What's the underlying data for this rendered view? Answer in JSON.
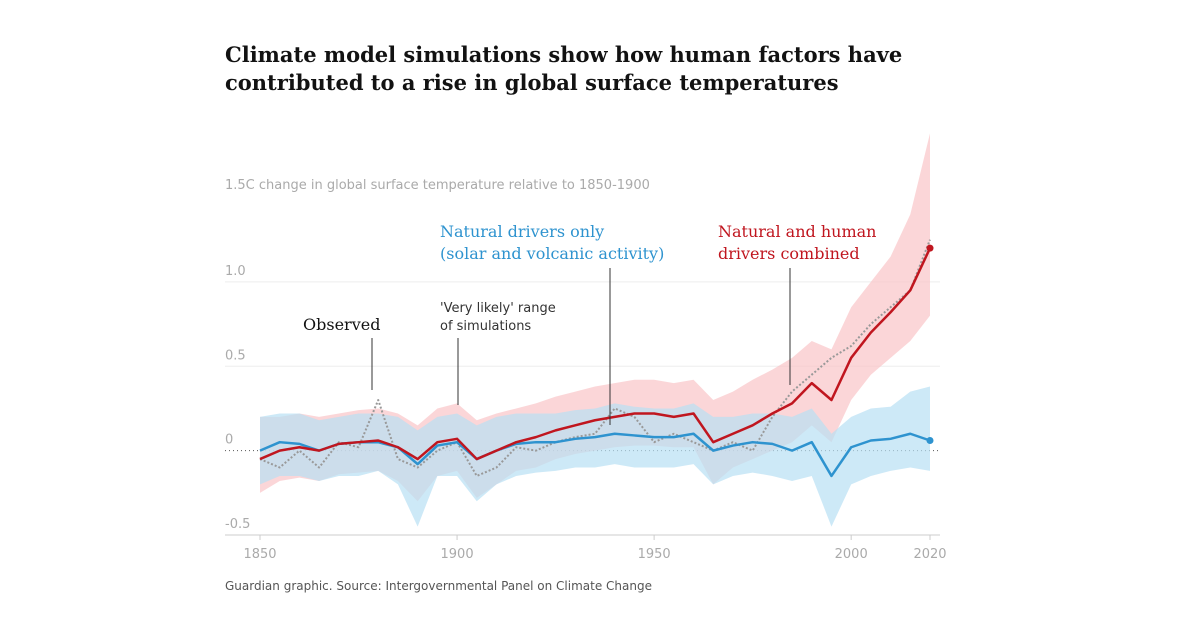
{
  "chart_data": {
    "type": "line",
    "title_lines": [
      "Climate model simulations show how human factors have",
      "contributed to a rise in global surface temperatures"
    ],
    "y_axis_label": "1.5C change in global surface temperature relative to 1850-1900",
    "source": "Guardian graphic. Source: Intergovernmental Panel on Climate Change",
    "range_label_lines": [
      "'Very likely' range",
      "of simulations"
    ],
    "xlim": [
      1850,
      2020
    ],
    "xticks": [
      1850,
      1900,
      1950,
      2000,
      2020
    ],
    "ylim": [
      -0.5,
      1.9
    ],
    "yticks": [
      -0.5,
      0,
      0.5,
      {
        "value": 1,
        "label": "1.0"
      }
    ],
    "grid": true,
    "x": [
      1850,
      1855,
      1860,
      1865,
      1870,
      1875,
      1880,
      1885,
      1890,
      1895,
      1900,
      1905,
      1910,
      1915,
      1920,
      1925,
      1930,
      1935,
      1940,
      1945,
      1950,
      1955,
      1960,
      1965,
      1970,
      1975,
      1980,
      1985,
      1990,
      1995,
      2000,
      2005,
      2010,
      2015,
      2020
    ],
    "series": [
      {
        "name_lines": [
          "Natural and human",
          "drivers combined"
        ],
        "color": "#c0161f",
        "range_color": "#f9c4c8",
        "values": [
          -0.05,
          0.0,
          0.02,
          0.0,
          0.04,
          0.05,
          0.06,
          0.02,
          -0.05,
          0.05,
          0.07,
          -0.05,
          0.0,
          0.05,
          0.08,
          0.12,
          0.15,
          0.18,
          0.2,
          0.22,
          0.22,
          0.2,
          0.22,
          0.05,
          0.1,
          0.15,
          0.22,
          0.28,
          0.4,
          0.3,
          0.55,
          0.7,
          0.82,
          0.95,
          1.2
        ],
        "range_low": [
          -0.25,
          -0.18,
          -0.16,
          -0.18,
          -0.14,
          -0.13,
          -0.12,
          -0.18,
          -0.3,
          -0.15,
          -0.12,
          -0.28,
          -0.2,
          -0.12,
          -0.1,
          -0.05,
          -0.02,
          0.0,
          0.02,
          0.03,
          0.03,
          0.02,
          0.02,
          -0.2,
          -0.1,
          -0.05,
          0.0,
          0.05,
          0.15,
          0.05,
          0.3,
          0.45,
          0.55,
          0.65,
          0.8
        ],
        "range_high": [
          0.2,
          0.2,
          0.22,
          0.2,
          0.22,
          0.24,
          0.25,
          0.22,
          0.15,
          0.25,
          0.28,
          0.18,
          0.22,
          0.25,
          0.28,
          0.32,
          0.35,
          0.38,
          0.4,
          0.42,
          0.42,
          0.4,
          0.42,
          0.3,
          0.35,
          0.42,
          0.48,
          0.55,
          0.65,
          0.6,
          0.85,
          1.0,
          1.15,
          1.4,
          1.88
        ]
      },
      {
        "name_lines": [
          "Natural drivers only",
          "(solar and volcanic activity)"
        ],
        "color": "#2e93cf",
        "range_color": "#b8e0f4",
        "values": [
          0.0,
          0.05,
          0.04,
          0.0,
          0.04,
          0.05,
          0.05,
          0.02,
          -0.08,
          0.03,
          0.05,
          -0.05,
          0.0,
          0.04,
          0.05,
          0.05,
          0.07,
          0.08,
          0.1,
          0.09,
          0.08,
          0.08,
          0.1,
          0.0,
          0.03,
          0.05,
          0.04,
          0.0,
          0.05,
          -0.15,
          0.02,
          0.06,
          0.07,
          0.1,
          0.06
        ],
        "range_low": [
          -0.2,
          -0.15,
          -0.15,
          -0.18,
          -0.15,
          -0.15,
          -0.12,
          -0.2,
          -0.45,
          -0.15,
          -0.15,
          -0.3,
          -0.2,
          -0.15,
          -0.13,
          -0.12,
          -0.1,
          -0.1,
          -0.08,
          -0.1,
          -0.1,
          -0.1,
          -0.08,
          -0.2,
          -0.15,
          -0.13,
          -0.15,
          -0.18,
          -0.15,
          -0.45,
          -0.2,
          -0.15,
          -0.12,
          -0.1,
          -0.12
        ],
        "range_high": [
          0.2,
          0.22,
          0.22,
          0.18,
          0.2,
          0.22,
          0.22,
          0.2,
          0.12,
          0.2,
          0.22,
          0.15,
          0.2,
          0.22,
          0.22,
          0.22,
          0.24,
          0.25,
          0.28,
          0.26,
          0.25,
          0.25,
          0.28,
          0.2,
          0.2,
          0.22,
          0.22,
          0.2,
          0.25,
          0.1,
          0.2,
          0.25,
          0.26,
          0.35,
          0.38
        ]
      },
      {
        "name_lines": [
          "Observed"
        ],
        "color": "#999999",
        "values": [
          -0.05,
          -0.1,
          0.0,
          -0.1,
          0.05,
          0.02,
          0.3,
          -0.05,
          -0.1,
          0.0,
          0.05,
          -0.15,
          -0.1,
          0.02,
          0.0,
          0.05,
          0.08,
          0.1,
          0.25,
          0.2,
          0.05,
          0.1,
          0.05,
          0.0,
          0.05,
          0.0,
          0.2,
          0.35,
          0.45,
          0.55,
          0.62,
          0.75,
          0.85,
          0.95,
          1.25
        ]
      }
    ]
  }
}
